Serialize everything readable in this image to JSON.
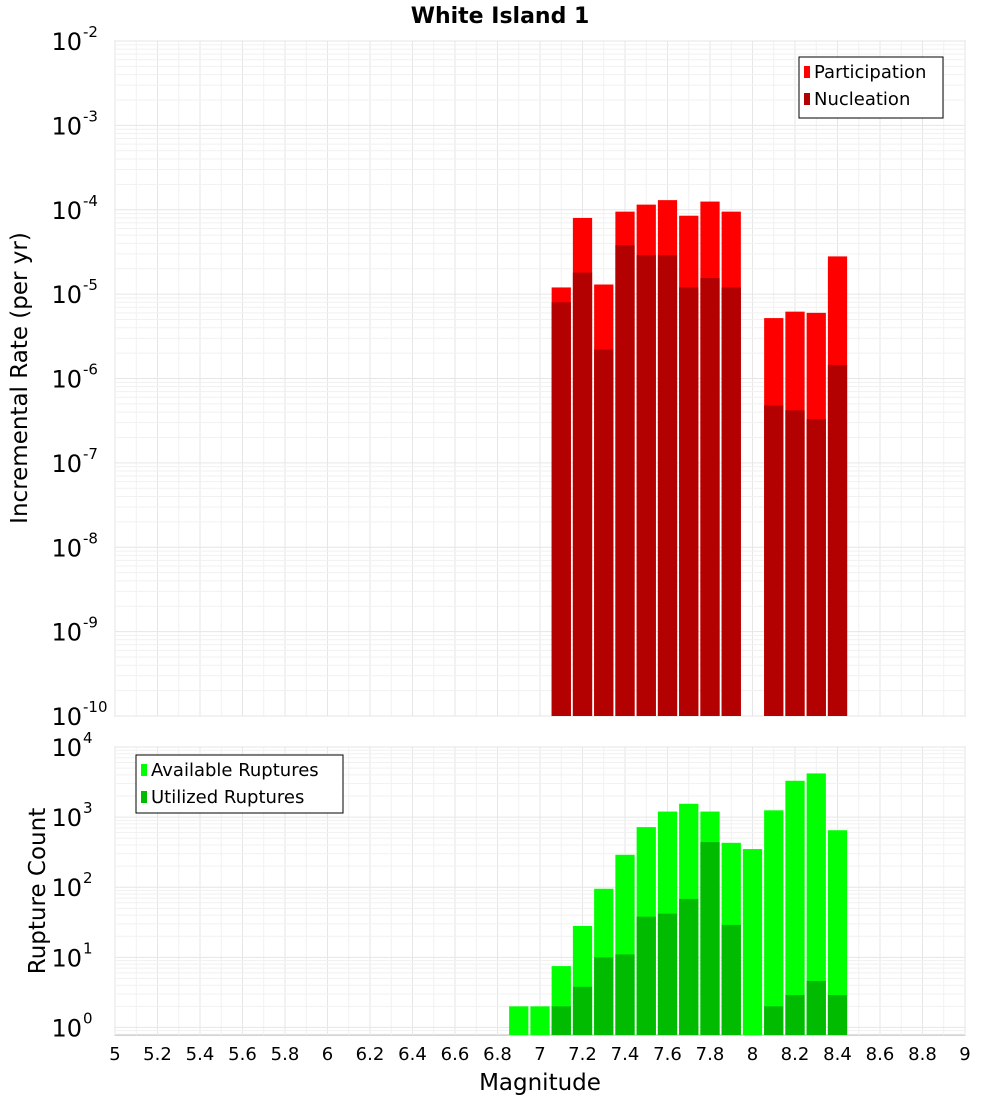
{
  "chart_data": [
    {
      "type": "bar",
      "title": "White Island 1",
      "xlabel": "",
      "ylabel": "Incremental Rate (per yr)",
      "xlim": [
        5,
        9
      ],
      "ylim": [
        1e-10,
        0.01
      ],
      "yscale": "log",
      "grid": true,
      "legend_position": "top-right",
      "ytick_labels": [
        {
          "base": "10",
          "exp": "-10",
          "value": 1e-10
        },
        {
          "base": "10",
          "exp": "-9",
          "value": 1e-09
        },
        {
          "base": "10",
          "exp": "-8",
          "value": 1e-08
        },
        {
          "base": "10",
          "exp": "-7",
          "value": 1e-07
        },
        {
          "base": "10",
          "exp": "-6",
          "value": 1e-06
        },
        {
          "base": "10",
          "exp": "-5",
          "value": 1e-05
        },
        {
          "base": "10",
          "exp": "-4",
          "value": 0.0001
        },
        {
          "base": "10",
          "exp": "-3",
          "value": 0.001
        },
        {
          "base": "10",
          "exp": "-2",
          "value": 0.01
        }
      ],
      "x": [
        7.1,
        7.2,
        7.3,
        7.4,
        7.5,
        7.6,
        7.7,
        7.8,
        7.9,
        8.1,
        8.2,
        8.3,
        8.4
      ],
      "series": [
        {
          "name": "Participation",
          "color": "#ff0000",
          "values": [
            1.2e-05,
            8e-05,
            1.3e-05,
            9.5e-05,
            0.000115,
            0.00013,
            8.5e-05,
            0.000125,
            9.5e-05,
            5.2e-06,
            6.2e-06,
            6e-06,
            2.8e-05
          ]
        },
        {
          "name": "Nucleation",
          "color": "#b30000",
          "values": [
            8e-06,
            1.8e-05,
            2.2e-06,
            3.8e-05,
            2.9e-05,
            2.9e-05,
            1.2e-05,
            1.55e-05,
            1.2e-05,
            4.8e-07,
            4.2e-07,
            3.3e-07,
            1.45e-06
          ]
        }
      ]
    },
    {
      "type": "bar",
      "title": "",
      "xlabel": "Magnitude",
      "ylabel": "Rupture Count",
      "xlim": [
        5,
        9
      ],
      "ylim": [
        0.78,
        10000
      ],
      "yscale": "log",
      "grid": true,
      "legend_position": "top-left",
      "ytick_labels": [
        {
          "base": "10",
          "exp": "0",
          "value": 1
        },
        {
          "base": "10",
          "exp": "1",
          "value": 10
        },
        {
          "base": "10",
          "exp": "2",
          "value": 100
        },
        {
          "base": "10",
          "exp": "3",
          "value": 1000
        },
        {
          "base": "10",
          "exp": "4",
          "value": 10000
        }
      ],
      "xtick_labels": [
        "5",
        "5.2",
        "5.4",
        "5.6",
        "5.8",
        "6",
        "6.2",
        "6.4",
        "6.6",
        "6.8",
        "7",
        "7.2",
        "7.4",
        "7.6",
        "7.8",
        "8",
        "8.2",
        "8.4",
        "8.6",
        "8.8",
        "9"
      ],
      "x": [
        6.9,
        7.0,
        7.1,
        7.2,
        7.3,
        7.4,
        7.5,
        7.6,
        7.7,
        7.8,
        7.9,
        8.0,
        8.1,
        8.2,
        8.3,
        8.4
      ],
      "series": [
        {
          "name": "Available Ruptures",
          "color": "#00ff00",
          "values": [
            2,
            2,
            7.5,
            28,
            95,
            290,
            720,
            1200,
            1550,
            1200,
            430,
            350,
            1250,
            3300,
            4200,
            650
          ]
        },
        {
          "name": "Utilized Ruptures",
          "color": "#00bb00",
          "values": [
            null,
            null,
            2,
            3.8,
            10,
            11,
            38,
            42,
            68,
            440,
            29,
            null,
            2,
            2.9,
            4.6,
            2.9
          ]
        }
      ]
    }
  ]
}
